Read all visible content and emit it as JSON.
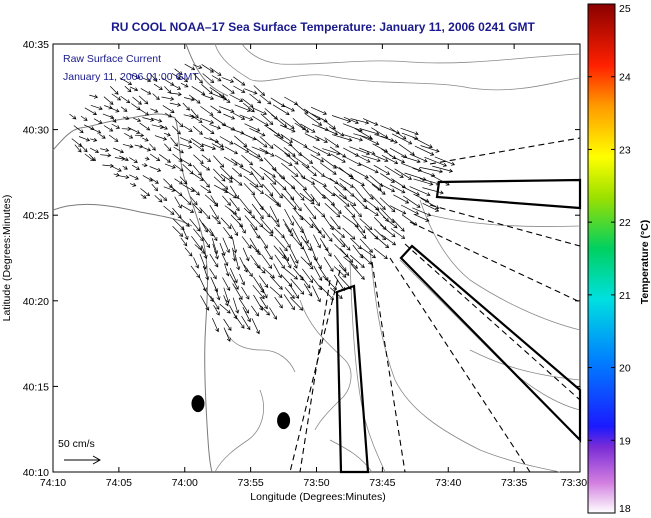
{
  "chart_data": {
    "type": "quiver",
    "title": "RU COOL  NOAA–17  Sea Surface Temperature:  January 11, 2006 0241 GMT",
    "inset_label_1": "Raw Surface Current",
    "inset_label_2": "January 11, 2006 01:00 GMT",
    "xlabel": "Longitude (Degrees:Minutes)",
    "ylabel": "Latitude (Degrees:Minutes)",
    "x_ticks": [
      "74:10",
      "74:05",
      "74:00",
      "73:55",
      "73:50",
      "73:45",
      "73:40",
      "73:35",
      "73:30"
    ],
    "y_ticks": [
      "40:10",
      "40:15",
      "40:20",
      "40:25",
      "40:30",
      "40:35"
    ],
    "xlim_deg": [
      -74.1667,
      -73.5
    ],
    "ylim_deg": [
      40.1667,
      40.5833
    ],
    "scale_label": "50 cm/s",
    "colorbar": {
      "label": "Temperature (°C)",
      "range": [
        18,
        25
      ],
      "ticks": [
        "18",
        "19",
        "20",
        "21",
        "22",
        "23",
        "24",
        "25"
      ]
    },
    "stations": [
      {
        "lon": -73.9833,
        "lat": 40.2333
      },
      {
        "lon": -73.875,
        "lat": 40.2167
      }
    ],
    "vector_field": [
      {
        "lon": -74.07,
        "lat": 40.48,
        "u": 15,
        "v": -5
      },
      {
        "lon": -74.02,
        "lat": 40.53,
        "u": 20,
        "v": -10
      },
      {
        "lon": -73.95,
        "lat": 40.52,
        "u": 30,
        "v": -15
      },
      {
        "lon": -73.9,
        "lat": 40.49,
        "u": 35,
        "v": -20
      },
      {
        "lon": -73.8,
        "lat": 40.49,
        "u": 40,
        "v": -15
      },
      {
        "lon": -73.7,
        "lat": 40.47,
        "u": 45,
        "v": -15
      },
      {
        "lon": -73.9,
        "lat": 40.43,
        "u": 25,
        "v": -30
      },
      {
        "lon": -73.85,
        "lat": 40.4,
        "u": 20,
        "v": -35
      },
      {
        "lon": -73.78,
        "lat": 40.42,
        "u": 30,
        "v": -30
      },
      {
        "lon": -73.95,
        "lat": 40.38,
        "u": 10,
        "v": -30
      }
    ]
  }
}
